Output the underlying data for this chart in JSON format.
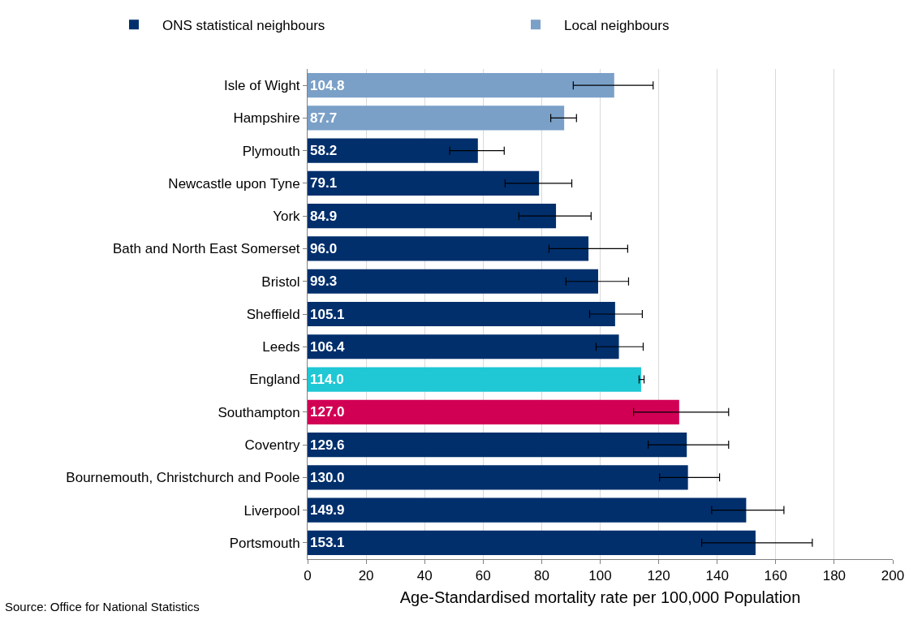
{
  "chart_data": {
    "type": "bar",
    "orientation": "horizontal",
    "xlabel": "Age-Standardised mortality rate per 100,000 Population",
    "categories": [
      "Isle of Wight",
      "Hampshire",
      "Plymouth",
      "Newcastle upon Tyne",
      "York",
      "Bath and North East Somerset",
      "Bristol",
      "Sheffield",
      "Leeds",
      "England",
      "Southampton",
      "Coventry",
      "Bournemouth, Christchurch and Poole",
      "Liverpool",
      "Portsmouth"
    ],
    "series": [
      {
        "name": "ONS statistical neighbours",
        "color": "#002f6c",
        "values": [
          null,
          null,
          58.2,
          79.1,
          84.9,
          96.0,
          99.3,
          105.1,
          106.4,
          null,
          null,
          129.6,
          130.0,
          149.9,
          153.1
        ],
        "value_labels": [
          null,
          null,
          "58.2",
          "79.1",
          "84.9",
          "96.0",
          "99.3",
          "105.1",
          "106.4",
          null,
          null,
          "129.6",
          "130.0",
          "149.9",
          "153.1"
        ],
        "errors": [
          null,
          null,
          [
            48.6,
            67.2
          ],
          [
            67.5,
            90.3
          ],
          [
            72.2,
            96.9
          ],
          [
            82.5,
            109.4
          ],
          [
            88.3,
            109.7
          ],
          [
            96.4,
            114.4
          ],
          [
            98.6,
            114.7
          ],
          null,
          null,
          [
            116.4,
            143.9
          ],
          [
            120.3,
            140.8
          ],
          [
            138.1,
            162.8
          ],
          [
            134.7,
            172.5
          ]
        ]
      },
      {
        "name": "Local neighbours",
        "color": "#7aa0c8",
        "values": [
          104.8,
          87.7,
          null,
          null,
          null,
          null,
          null,
          null,
          null,
          null,
          null,
          null,
          null,
          null,
          null
        ],
        "value_labels": [
          "104.8",
          "87.7",
          null,
          null,
          null,
          null,
          null,
          null,
          null,
          null,
          null,
          null,
          null,
          null,
          null
        ],
        "errors": [
          [
            90.8,
            118.1
          ],
          [
            83.1,
            91.9
          ],
          null,
          null,
          null,
          null,
          null,
          null,
          null,
          null,
          null,
          null,
          null,
          null,
          null
        ]
      },
      {
        "color": "#1fc8d4",
        "values": [
          null,
          null,
          null,
          null,
          null,
          null,
          null,
          null,
          null,
          114.0,
          null,
          null,
          null,
          null,
          null
        ],
        "value_labels": [
          null,
          null,
          null,
          null,
          null,
          null,
          null,
          null,
          null,
          "114.0",
          null,
          null,
          null,
          null,
          null
        ],
        "errors": [
          null,
          null,
          null,
          null,
          null,
          null,
          null,
          null,
          null,
          [
            113.3,
            115.0
          ],
          null,
          null,
          null,
          null,
          null
        ]
      },
      {
        "color": "#d20055",
        "values": [
          null,
          null,
          null,
          null,
          null,
          null,
          null,
          null,
          null,
          null,
          127.0,
          null,
          null,
          null,
          null
        ],
        "value_labels": [
          null,
          null,
          null,
          null,
          null,
          null,
          null,
          null,
          null,
          null,
          "127.0",
          null,
          null,
          null,
          null
        ],
        "errors": [
          null,
          null,
          null,
          null,
          null,
          null,
          null,
          null,
          null,
          null,
          [
            111.4,
            143.9
          ],
          null,
          null,
          null,
          null
        ]
      }
    ],
    "xlim": [
      0,
      200
    ],
    "xticks": [
      0,
      20,
      40,
      60,
      80,
      100,
      120,
      140,
      160,
      180,
      200
    ],
    "grid": "x",
    "legend": "top",
    "annotations": [
      "Source: Office for National Statistics"
    ]
  }
}
